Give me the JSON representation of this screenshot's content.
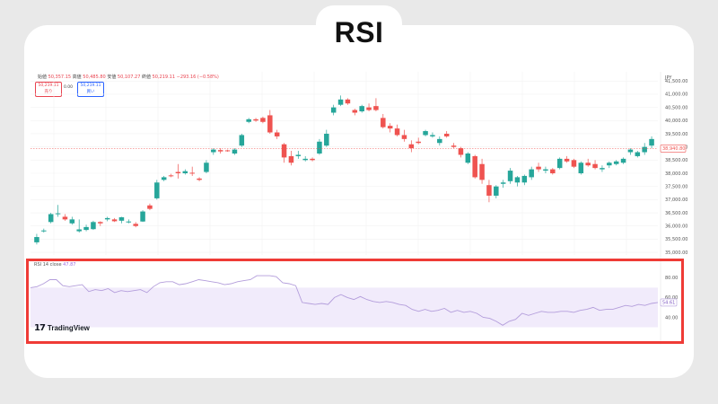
{
  "page": {
    "title": "RSI"
  },
  "legend": {
    "open_label": "始値",
    "open": "50,357.15",
    "high_label": "高値",
    "high": "50,485.80",
    "low_label": "安値",
    "low": "50,107.27",
    "close_label": "終値",
    "close": "50,219.11",
    "change": "−293.16 (−0.58%)"
  },
  "trade": {
    "sell_price": "50,219.11",
    "sell_label": "売り",
    "spread": "0.00",
    "buy_price": "50,219.11",
    "buy_label": "買い"
  },
  "brand": {
    "name": "TradingView",
    "mark": "17"
  },
  "colors": {
    "up": "#26a69a",
    "down": "#ef5350",
    "rsi": "#b39ddb",
    "band": "#f1ebfb",
    "highlight": "#ef3b36",
    "last_price": "#ef5350"
  },
  "chart_data": [
    {
      "type": "candlestick",
      "y_axis_unit": "JPY",
      "y_ticks": [
        "41,500.00",
        "41,000.00",
        "40,500.00",
        "40,000.00",
        "39,500.00",
        "39,000.00",
        "38,500.00",
        "38,000.00",
        "37,500.00",
        "37,000.00",
        "36,500.00",
        "36,000.00",
        "35,500.00",
        "35,000.00"
      ],
      "y_values": [
        41500,
        41000,
        40500,
        40000,
        39500,
        39000,
        38500,
        38000,
        37500,
        37000,
        36500,
        36000,
        35500,
        35000
      ],
      "ylim": [
        34900,
        41850
      ],
      "last_price_label": "38,940.80",
      "last_price": 38940.8,
      "candles": [
        [
          35380,
          35700,
          35300,
          35580
        ],
        [
          35800,
          35900,
          35750,
          35830
        ],
        [
          36150,
          36500,
          36100,
          36450
        ],
        [
          36450,
          36800,
          36350,
          36480
        ],
        [
          36350,
          36450,
          36200,
          36250
        ],
        [
          36100,
          36350,
          36050,
          36250
        ],
        [
          35800,
          36250,
          35750,
          35870
        ],
        [
          35850,
          36050,
          35800,
          35960
        ],
        [
          35880,
          36200,
          35850,
          36150
        ],
        [
          36150,
          36180,
          36000,
          36100
        ],
        [
          36250,
          36350,
          36180,
          36300
        ],
        [
          36250,
          36300,
          36150,
          36180
        ],
        [
          36200,
          36350,
          36100,
          36330
        ],
        [
          36150,
          36250,
          36100,
          36170
        ],
        [
          36080,
          36150,
          35950,
          36000
        ],
        [
          36170,
          36600,
          36150,
          36550
        ],
        [
          36780,
          36850,
          36600,
          36650
        ],
        [
          37050,
          37750,
          37000,
          37650
        ],
        [
          37750,
          37900,
          37700,
          37850
        ],
        [
          37920,
          37980,
          37850,
          37900
        ],
        [
          38050,
          38350,
          37800,
          38000
        ],
        [
          38000,
          38150,
          37950,
          38080
        ],
        [
          38020,
          38250,
          37900,
          38000
        ],
        [
          37800,
          37850,
          37700,
          37750
        ],
        [
          38050,
          38500,
          38000,
          38400
        ],
        [
          38800,
          38950,
          38700,
          38900
        ],
        [
          38880,
          38950,
          38750,
          38830
        ],
        [
          38870,
          38900,
          38820,
          38850
        ],
        [
          38750,
          38950,
          38700,
          38900
        ],
        [
          39050,
          39500,
          39000,
          39450
        ],
        [
          39950,
          40100,
          39900,
          40050
        ],
        [
          40050,
          40100,
          39950,
          40000
        ],
        [
          40100,
          40150,
          39900,
          39950
        ],
        [
          40200,
          40400,
          39500,
          39550
        ],
        [
          39550,
          39650,
          39300,
          39400
        ],
        [
          39100,
          39150,
          38400,
          38600
        ],
        [
          38650,
          38850,
          38300,
          38400
        ],
        [
          38650,
          38850,
          38550,
          38700
        ],
        [
          38500,
          38650,
          38450,
          38550
        ],
        [
          38550,
          38600,
          38450,
          38500
        ],
        [
          38750,
          39300,
          38700,
          39200
        ],
        [
          39050,
          39650,
          39000,
          39500
        ],
        [
          40300,
          40600,
          40200,
          40500
        ],
        [
          40600,
          40950,
          40550,
          40800
        ],
        [
          40800,
          40850,
          40600,
          40650
        ],
        [
          40400,
          40450,
          40200,
          40300
        ],
        [
          40350,
          40600,
          40300,
          40550
        ],
        [
          40500,
          40650,
          40350,
          40400
        ],
        [
          40550,
          40850,
          40350,
          40400
        ],
        [
          40100,
          40250,
          39700,
          39750
        ],
        [
          39800,
          39900,
          39550,
          39700
        ],
        [
          39700,
          39850,
          39400,
          39450
        ],
        [
          39450,
          39650,
          39200,
          39300
        ],
        [
          39100,
          39250,
          38800,
          38950
        ],
        [
          39200,
          39350,
          39100,
          39150
        ],
        [
          39450,
          39650,
          39400,
          39600
        ],
        [
          39400,
          39550,
          39350,
          39450
        ],
        [
          39150,
          39400,
          39050,
          39300
        ],
        [
          39500,
          39600,
          39350,
          39400
        ],
        [
          39050,
          39150,
          38950,
          39000
        ],
        [
          38950,
          39000,
          38600,
          38700
        ],
        [
          38400,
          38800,
          38350,
          38750
        ],
        [
          38650,
          38700,
          37800,
          37850
        ],
        [
          38350,
          38550,
          37600,
          37750
        ],
        [
          37550,
          37750,
          36900,
          37150
        ],
        [
          37150,
          37550,
          37050,
          37500
        ],
        [
          37600,
          37750,
          37450,
          37650
        ],
        [
          37700,
          38200,
          37600,
          38100
        ],
        [
          37650,
          37900,
          37500,
          37850
        ],
        [
          37650,
          37950,
          37550,
          37900
        ],
        [
          37850,
          38250,
          37750,
          38150
        ],
        [
          38250,
          38400,
          38050,
          38150
        ],
        [
          38100,
          38250,
          38000,
          38150
        ],
        [
          38150,
          38200,
          37950,
          38000
        ],
        [
          38200,
          38600,
          38150,
          38550
        ],
        [
          38550,
          38650,
          38400,
          38450
        ],
        [
          38500,
          38550,
          38200,
          38250
        ],
        [
          38000,
          38450,
          37950,
          38400
        ],
        [
          38400,
          38550,
          38250,
          38300
        ],
        [
          38350,
          38500,
          38150,
          38200
        ],
        [
          38150,
          38300,
          38050,
          38200
        ],
        [
          38300,
          38450,
          38200,
          38400
        ],
        [
          38350,
          38500,
          38300,
          38450
        ],
        [
          38400,
          38600,
          38350,
          38550
        ],
        [
          38800,
          38950,
          38700,
          38900
        ],
        [
          38650,
          38850,
          38600,
          38800
        ],
        [
          38800,
          39150,
          38700,
          39000
        ],
        [
          39050,
          39400,
          38950,
          39300
        ]
      ]
    },
    {
      "type": "line",
      "indicator_label": "RSI",
      "params": "14 close",
      "current_value": "47.87",
      "right_label": "54.61",
      "y_ticks": [
        "80.00",
        "60.00",
        "40.00"
      ],
      "y_values": [
        80,
        60,
        40
      ],
      "band": [
        30,
        70
      ],
      "ylim": [
        25,
        93
      ],
      "series": [
        {
          "values": [
            70,
            71,
            74,
            78,
            78,
            72,
            71,
            72,
            73,
            66,
            68,
            67,
            69,
            65,
            67,
            66,
            67,
            68,
            65,
            71,
            75,
            76,
            76,
            73,
            74,
            76,
            78,
            77,
            76,
            75,
            73,
            74,
            76,
            77,
            78,
            82,
            82,
            82,
            81,
            75,
            74,
            72,
            55,
            54,
            53,
            54,
            53,
            60,
            63,
            60,
            58,
            61,
            58,
            56,
            55,
            56,
            55,
            53,
            52,
            48,
            46,
            48,
            46,
            47,
            49,
            45,
            47,
            45,
            46,
            44,
            40,
            39,
            36,
            32,
            36,
            38,
            44,
            42,
            44,
            46,
            45,
            45,
            46,
            46,
            45,
            47,
            48,
            50,
            47,
            48,
            48,
            50,
            52,
            51,
            53,
            52,
            54,
            55
          ]
        }
      ]
    }
  ]
}
